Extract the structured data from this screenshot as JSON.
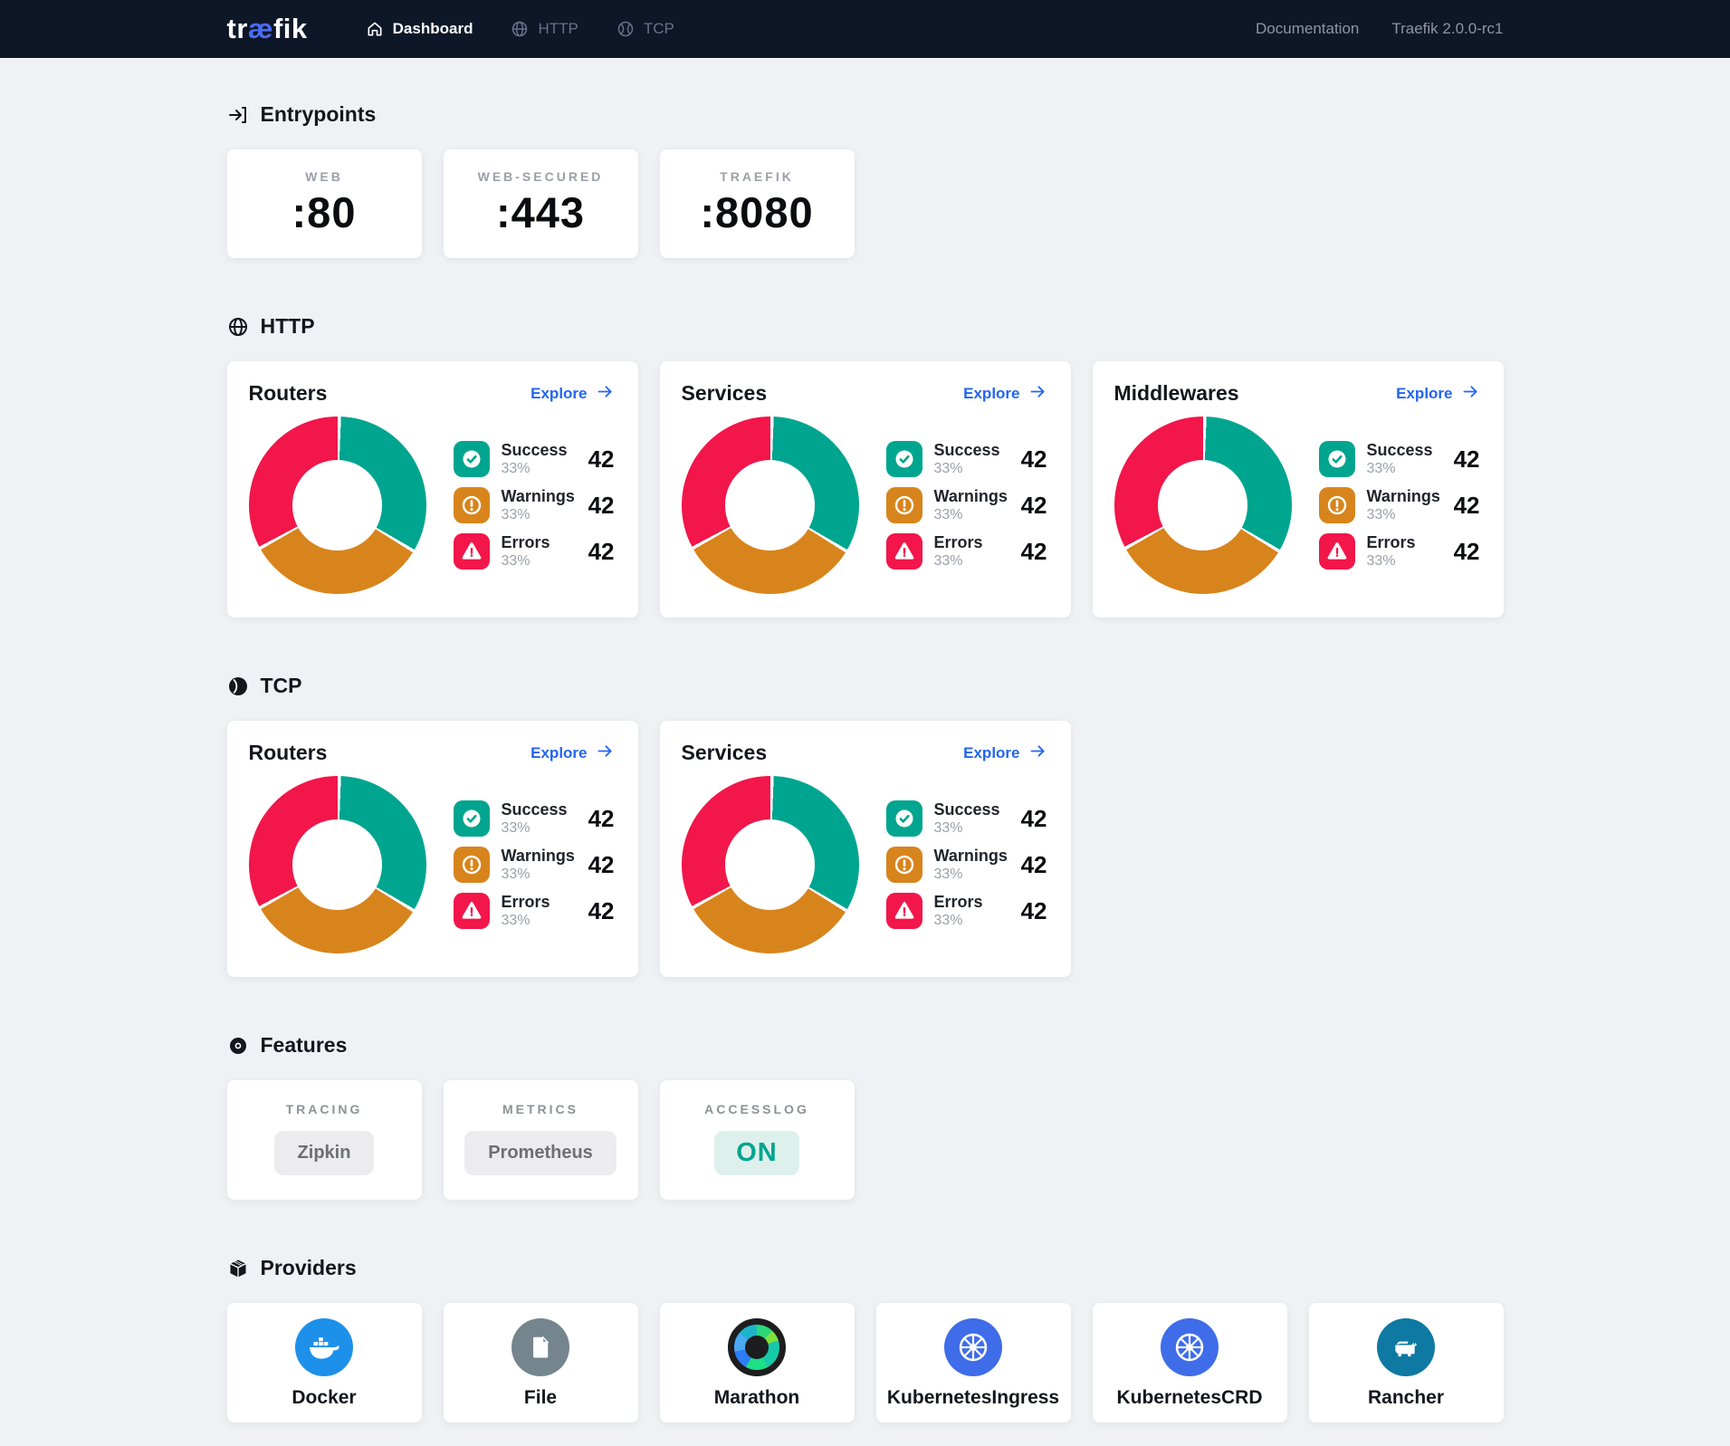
{
  "navbar": {
    "logo_pre": "tr",
    "logo_ae": "æ",
    "logo_post": "fik",
    "items": [
      {
        "label": "Dashboard",
        "active": true
      },
      {
        "label": "HTTP",
        "active": false
      },
      {
        "label": "TCP",
        "active": false
      }
    ],
    "doc_link": "Documentation",
    "version": "Traefik 2.0.0-rc1"
  },
  "sections": {
    "entrypoints": {
      "title": "Entrypoints",
      "cards": [
        {
          "label": "WEB",
          "port": ":80"
        },
        {
          "label": "WEB-SECURED",
          "port": ":443"
        },
        {
          "label": "TRAEFIK",
          "port": ":8080"
        }
      ]
    },
    "http": {
      "title": "HTTP"
    },
    "tcp": {
      "title": "TCP"
    },
    "features": {
      "title": "Features",
      "cards": [
        {
          "label": "TRACING",
          "value": "Zipkin",
          "state": "neutral"
        },
        {
          "label": "METRICS",
          "value": "Prometheus",
          "state": "neutral"
        },
        {
          "label": "ACCESSLOG",
          "value": "ON",
          "state": "on"
        }
      ]
    },
    "providers": {
      "title": "Providers",
      "cards": [
        {
          "label": "Docker",
          "icon": "docker-icon"
        },
        {
          "label": "File",
          "icon": "file-icon"
        },
        {
          "label": "Marathon",
          "icon": "marathon-icon"
        },
        {
          "label": "KubernetesIngress",
          "icon": "kubernetes-icon"
        },
        {
          "label": "KubernetesCRD",
          "icon": "kubernetes-icon"
        },
        {
          "label": "Rancher",
          "icon": "rancher-icon"
        }
      ]
    }
  },
  "chart_data": [
    {
      "type": "pie",
      "section": "HTTP",
      "card_title": "Routers",
      "explore_label": "Explore",
      "labels": [
        "Success",
        "Warnings",
        "Errors"
      ],
      "percents": [
        33,
        33,
        33
      ],
      "percent_labels": [
        "33%",
        "33%",
        "33%"
      ],
      "values": [
        42,
        42,
        42
      ],
      "colors": [
        "#00a58f",
        "#d8841c",
        "#f2164a"
      ],
      "legend_position": "right"
    },
    {
      "type": "pie",
      "section": "HTTP",
      "card_title": "Services",
      "explore_label": "Explore",
      "labels": [
        "Success",
        "Warnings",
        "Errors"
      ],
      "percents": [
        33,
        33,
        33
      ],
      "percent_labels": [
        "33%",
        "33%",
        "33%"
      ],
      "values": [
        42,
        42,
        42
      ],
      "colors": [
        "#00a58f",
        "#d8841c",
        "#f2164a"
      ],
      "legend_position": "right"
    },
    {
      "type": "pie",
      "section": "HTTP",
      "card_title": "Middlewares",
      "explore_label": "Explore",
      "labels": [
        "Success",
        "Warnings",
        "Errors"
      ],
      "percents": [
        33,
        33,
        33
      ],
      "percent_labels": [
        "33%",
        "33%",
        "33%"
      ],
      "values": [
        42,
        42,
        42
      ],
      "colors": [
        "#00a58f",
        "#d8841c",
        "#f2164a"
      ],
      "legend_position": "right"
    },
    {
      "type": "pie",
      "section": "TCP",
      "card_title": "Routers",
      "explore_label": "Explore",
      "labels": [
        "Success",
        "Warnings",
        "Errors"
      ],
      "percents": [
        33,
        33,
        33
      ],
      "percent_labels": [
        "33%",
        "33%",
        "33%"
      ],
      "values": [
        42,
        42,
        42
      ],
      "colors": [
        "#00a58f",
        "#d8841c",
        "#f2164a"
      ],
      "legend_position": "right"
    },
    {
      "type": "pie",
      "section": "TCP",
      "card_title": "Services",
      "explore_label": "Explore",
      "labels": [
        "Success",
        "Warnings",
        "Errors"
      ],
      "percents": [
        33,
        33,
        33
      ],
      "percent_labels": [
        "33%",
        "33%",
        "33%"
      ],
      "values": [
        42,
        42,
        42
      ],
      "colors": [
        "#00a58f",
        "#d8841c",
        "#f2164a"
      ],
      "legend_position": "right"
    }
  ],
  "colors": {
    "success": "#00a58f",
    "warning": "#d8841c",
    "error": "#f2164a",
    "accent_blue": "#2365f0",
    "navbar_bg": "#0d1728",
    "page_bg": "#eff1f4"
  }
}
